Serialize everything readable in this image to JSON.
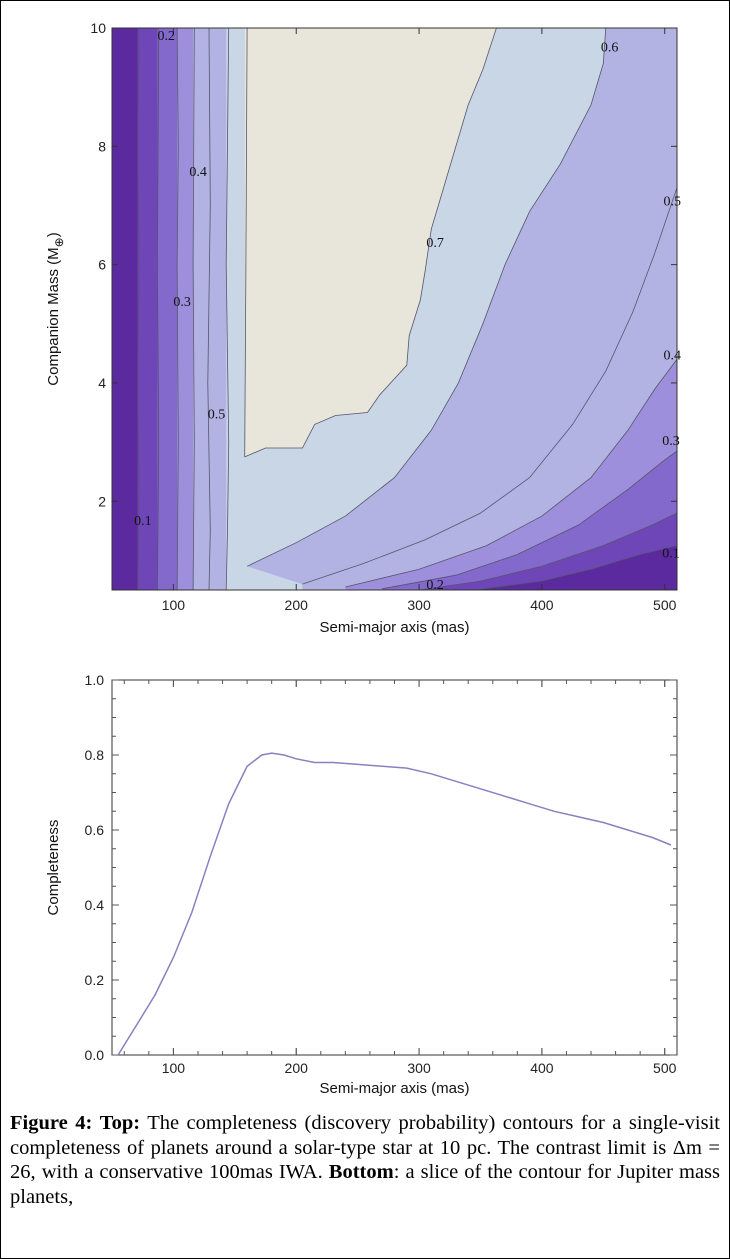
{
  "chart_data": [
    {
      "type": "contour",
      "xlabel": "Semi-major axis (mas)",
      "ylabel": "Companion Mass (M",
      "ylabel_subscript": "⊕",
      "ylabel_close": ")",
      "xlim": [
        50,
        510
      ],
      "ylim": [
        0.5,
        10
      ],
      "xticks": [
        100,
        200,
        300,
        400,
        500
      ],
      "yticks": [
        2,
        4,
        6,
        8,
        10
      ],
      "xtick_labels": [
        "100",
        "200",
        "300",
        "400",
        "500"
      ],
      "ytick_labels": [
        "2",
        "4",
        "6",
        "8",
        "10"
      ],
      "levels": [
        0.1,
        0.2,
        0.3,
        0.4,
        0.5,
        0.6,
        0.7
      ],
      "level_colors": [
        "#5b2a9e",
        "#6e46b8",
        "#8469cc",
        "#9e8fdc",
        "#b3b3e3",
        "#c8d6e6",
        "#e8e6db"
      ],
      "contour_lines": [
        {
          "level": 0.1,
          "points": [
            [
              71,
              0.5
            ],
            [
              72,
              2
            ],
            [
              71,
              4
            ],
            [
              72,
              6
            ],
            [
              71,
              8
            ],
            [
              72,
              10
            ]
          ]
        },
        {
          "level": 0.2,
          "points": [
            [
              87,
              0.5
            ],
            [
              88,
              3
            ],
            [
              87,
              6
            ],
            [
              88,
              10
            ]
          ]
        },
        {
          "level": 0.3,
          "points": [
            [
              103,
              0.5
            ],
            [
              104,
              3
            ],
            [
              103,
              6
            ],
            [
              104,
              8
            ],
            [
              103,
              10
            ]
          ]
        },
        {
          "level": 0.4,
          "points": [
            [
              116,
              0.5
            ],
            [
              117,
              3
            ],
            [
              116,
              6
            ],
            [
              117,
              10
            ]
          ]
        },
        {
          "level": 0.5,
          "points": [
            [
              129,
              0.5
            ],
            [
              130,
              1.5
            ],
            [
              128,
              4
            ],
            [
              130,
              7
            ],
            [
              129,
              10
            ]
          ]
        },
        {
          "level": 0.6,
          "points": [
            [
              143,
              0.5
            ],
            [
              144,
              1.5
            ],
            [
              145,
              3
            ],
            [
              143,
              6
            ],
            [
              145,
              10
            ]
          ]
        },
        {
          "level": 0.7,
          "points": [
            [
              158,
              2.75
            ],
            [
              159,
              6
            ],
            [
              160,
              10
            ]
          ]
        },
        {
          "level": 0.7,
          "points": [
            [
              158,
              2.75
            ],
            [
              175,
              2.9
            ],
            [
              205,
              2.9
            ],
            [
              215,
              3.3
            ],
            [
              232,
              3.45
            ],
            [
              258,
              3.5
            ],
            [
              268,
              3.8
            ],
            [
              290,
              4.3
            ],
            [
              292,
              4.8
            ],
            [
              301,
              5.4
            ],
            [
              305,
              5.9
            ],
            [
              310,
              6.6
            ],
            [
              320,
              7.3
            ],
            [
              330,
              8.0
            ],
            [
              340,
              8.7
            ],
            [
              352,
              9.3
            ],
            [
              363,
              10
            ]
          ]
        },
        {
          "level": 0.6,
          "points": [
            [
              160,
              0.9
            ],
            [
              200,
              1.3
            ],
            [
              240,
              1.75
            ],
            [
              280,
              2.4
            ],
            [
              310,
              3.2
            ],
            [
              332,
              4.0
            ],
            [
              352,
              5.0
            ],
            [
              370,
              6.0
            ],
            [
              390,
              6.9
            ],
            [
              415,
              7.7
            ],
            [
              440,
              8.7
            ],
            [
              450,
              9.4
            ],
            [
              452,
              10
            ]
          ]
        },
        {
          "level": 0.5,
          "points": [
            [
              205,
              0.6
            ],
            [
              255,
              0.95
            ],
            [
              305,
              1.35
            ],
            [
              350,
              1.8
            ],
            [
              390,
              2.4
            ],
            [
              425,
              3.3
            ],
            [
              452,
              4.2
            ],
            [
              474,
              5.2
            ],
            [
              492,
              6.2
            ],
            [
              505,
              7.0
            ],
            [
              510,
              7.3
            ]
          ]
        },
        {
          "level": 0.4,
          "points": [
            [
              240,
              0.55
            ],
            [
              300,
              0.85
            ],
            [
              355,
              1.25
            ],
            [
              400,
              1.75
            ],
            [
              440,
              2.4
            ],
            [
              470,
              3.2
            ],
            [
              492,
              3.9
            ],
            [
              510,
              4.4
            ]
          ]
        },
        {
          "level": 0.3,
          "points": [
            [
              270,
              0.52
            ],
            [
              330,
              0.75
            ],
            [
              380,
              1.1
            ],
            [
              430,
              1.6
            ],
            [
              470,
              2.2
            ],
            [
              500,
              2.7
            ],
            [
              510,
              2.85
            ]
          ]
        },
        {
          "level": 0.2,
          "points": [
            [
              300,
              0.5
            ],
            [
              350,
              0.65
            ],
            [
              400,
              0.9
            ],
            [
              450,
              1.25
            ],
            [
              490,
              1.6
            ],
            [
              510,
              1.8
            ]
          ]
        },
        {
          "level": 0.1,
          "points": [
            [
              345,
              0.5
            ],
            [
              400,
              0.65
            ],
            [
              440,
              0.85
            ],
            [
              480,
              1.1
            ],
            [
              510,
              1.25
            ]
          ]
        }
      ],
      "annotations": [
        {
          "text": "0.2",
          "x": 87,
          "y": 9.8
        },
        {
          "text": "0.4",
          "x": 113,
          "y": 7.5
        },
        {
          "text": "0.3",
          "x": 100,
          "y": 5.3
        },
        {
          "text": "0.5",
          "x": 128,
          "y": 3.4
        },
        {
          "text": "0.1",
          "x": 68,
          "y": 1.6
        },
        {
          "text": "0.7",
          "x": 306,
          "y": 6.3
        },
        {
          "text": "0.6",
          "x": 448,
          "y": 9.6
        },
        {
          "text": "0.5",
          "x": 499,
          "y": 7.0
        },
        {
          "text": "0.4",
          "x": 499,
          "y": 4.4
        },
        {
          "text": "0.3",
          "x": 498,
          "y": 2.95
        },
        {
          "text": "0.1",
          "x": 498,
          "y": 1.05
        },
        {
          "text": "0.2",
          "x": 306,
          "y": 0.52
        }
      ]
    },
    {
      "type": "line",
      "xlabel": "Semi-major axis (mas)",
      "ylabel": "Completeness",
      "xlim": [
        50,
        510
      ],
      "ylim": [
        0,
        1.0
      ],
      "xticks": [
        100,
        200,
        300,
        400,
        500
      ],
      "yticks": [
        0.0,
        0.2,
        0.4,
        0.6,
        0.8,
        1.0
      ],
      "xtick_labels": [
        "100",
        "200",
        "300",
        "400",
        "500"
      ],
      "ytick_labels": [
        "0.0",
        "0.2",
        "0.4",
        "0.6",
        "0.8",
        "1.0"
      ],
      "color": "#8a80c0",
      "series": [
        {
          "x": [
            55,
            70,
            85,
            100,
            115,
            130,
            145,
            160,
            172,
            180,
            190,
            200,
            215,
            230,
            250,
            270,
            290,
            310,
            330,
            350,
            370,
            390,
            410,
            430,
            450,
            470,
            490,
            505
          ],
          "y": [
            0.0,
            0.08,
            0.16,
            0.26,
            0.38,
            0.53,
            0.67,
            0.77,
            0.8,
            0.805,
            0.8,
            0.79,
            0.78,
            0.78,
            0.775,
            0.77,
            0.765,
            0.75,
            0.73,
            0.71,
            0.69,
            0.67,
            0.65,
            0.635,
            0.62,
            0.6,
            0.58,
            0.56
          ]
        }
      ]
    }
  ],
  "caption": {
    "label": "Figure 4:",
    "top_label": "Top:",
    "top_text": " The completeness (discovery probability) contours for a single-visit completeness of planets around a solar-type star at 10 pc.  The contrast limit is Δm = 26, with a conservative 100mas IWA.",
    "bottom_label": "Bottom",
    "bottom_text": ": a slice of the contour for Jupiter mass planets,"
  }
}
